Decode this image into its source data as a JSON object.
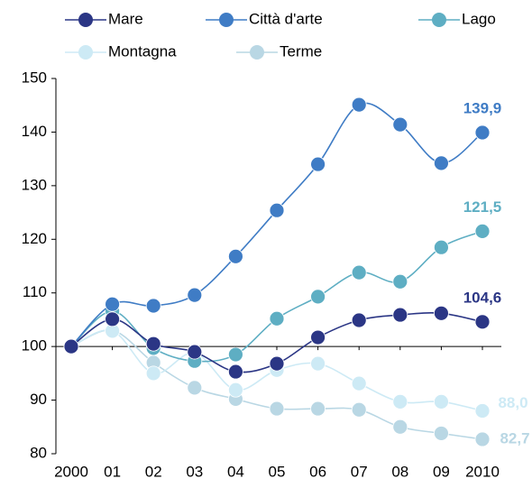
{
  "chart_data": {
    "type": "line",
    "categories": [
      "2000",
      "01",
      "02",
      "03",
      "04",
      "05",
      "06",
      "07",
      "08",
      "09",
      "2010"
    ],
    "ylim": [
      80,
      150
    ],
    "yticks": [
      80,
      90,
      100,
      110,
      120,
      130,
      140,
      150
    ],
    "baseline": 100,
    "smooth": true,
    "series": [
      {
        "name": "Mare",
        "color": "#2b3685",
        "values": [
          100,
          105.1,
          100.5,
          99,
          95.3,
          96.8,
          101.7,
          104.9,
          105.9,
          106.2,
          104.6
        ],
        "value_labels": [
          null,
          null,
          null,
          null,
          null,
          null,
          null,
          null,
          null,
          null,
          "104,6"
        ]
      },
      {
        "name": "Città d'arte",
        "color": "#3f7cc5",
        "values": [
          100,
          107.9,
          107.6,
          109.6,
          116.8,
          125.4,
          134,
          145.1,
          141.4,
          134.2,
          139.9
        ],
        "value_labels": [
          null,
          null,
          null,
          null,
          null,
          null,
          null,
          null,
          null,
          null,
          "139,9"
        ]
      },
      {
        "name": "Lago",
        "color": "#5eaec3",
        "values": [
          100,
          106.6,
          99.7,
          97.3,
          98.5,
          105.2,
          109.3,
          113.8,
          112.1,
          118.5,
          121.5
        ],
        "value_labels": [
          null,
          null,
          null,
          null,
          null,
          null,
          null,
          null,
          null,
          null,
          "121,5"
        ]
      },
      {
        "name": "Montagna",
        "color": "#cdeaf5",
        "values": [
          100,
          102.9,
          95,
          98.8,
          91.9,
          95.6,
          96.8,
          93.1,
          89.7,
          89.7,
          88.0
        ],
        "value_labels": [
          null,
          null,
          null,
          null,
          null,
          null,
          null,
          null,
          null,
          null,
          "88,0"
        ]
      },
      {
        "name": "Terme",
        "color": "#b9d7e4",
        "values": [
          100,
          103,
          97,
          92.3,
          90.2,
          88.4,
          88.4,
          88.2,
          85,
          83.8,
          82.7
        ],
        "value_labels": [
          null,
          null,
          null,
          null,
          null,
          null,
          null,
          null,
          null,
          null,
          "82,7"
        ]
      }
    ]
  }
}
